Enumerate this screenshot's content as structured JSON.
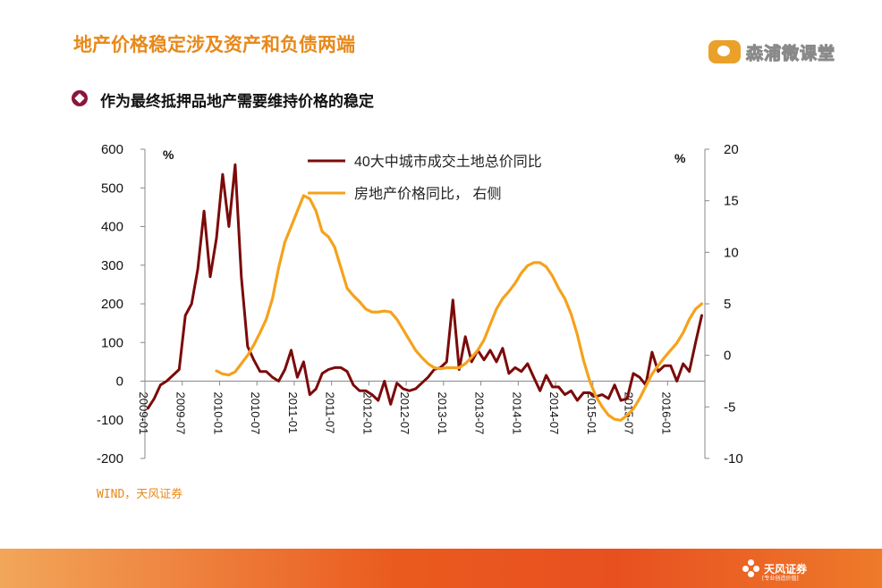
{
  "page": {
    "title": "地产价格稳定涉及资产和负债两端",
    "logo_text": "森浦微课堂",
    "bullet_text": "作为最终抵押品地产需要维持价格的稳定",
    "source": "WIND，天风证券",
    "footer_brand": "天风证券",
    "footer_tagline": "[专业创造价值]",
    "colors": {
      "title": "#e8891a",
      "bullet": "#8b1638",
      "series1": "#7b0a0a",
      "series2": "#f5a21c"
    }
  },
  "chart_data": {
    "type": "line",
    "left_unit": "%",
    "right_unit": "%",
    "y_left": {
      "min": -200,
      "max": 600,
      "ticks": [
        -200,
        -100,
        0,
        100,
        200,
        300,
        400,
        500,
        600
      ]
    },
    "y_right": {
      "min": -10,
      "max": 20,
      "ticks": [
        -10,
        -5,
        0,
        5,
        10,
        15,
        20
      ]
    },
    "x_ticks": [
      "2009-01",
      "2009-07",
      "2010-01",
      "2010-07",
      "2011-01",
      "2011-07",
      "2012-01",
      "2012-07",
      "2013-01",
      "2013-07",
      "2014-01",
      "2014-07",
      "2015-01",
      "2015-07",
      "2016-01"
    ],
    "x_start": "2009-01",
    "grid": false,
    "legend_position": "top-center",
    "series": [
      {
        "name": "40大中城市成交土地总价同比",
        "axis": "left",
        "color": "#7b0a0a",
        "values": [
          -70,
          -45,
          -10,
          0,
          15,
          30,
          170,
          200,
          290,
          440,
          270,
          370,
          535,
          400,
          560,
          270,
          90,
          55,
          25,
          25,
          10,
          0,
          30,
          80,
          10,
          50,
          -35,
          -20,
          20,
          30,
          35,
          35,
          25,
          -10,
          -25,
          -25,
          -35,
          -50,
          0,
          -60,
          -5,
          -20,
          -25,
          -20,
          -5,
          10,
          30,
          35,
          50,
          210,
          30,
          115,
          50,
          80,
          55,
          80,
          50,
          85,
          20,
          35,
          25,
          45,
          10,
          -25,
          15,
          -15,
          -15,
          -35,
          -25,
          -50,
          -30,
          -30,
          -40,
          -35,
          -45,
          -10,
          -50,
          -45,
          20,
          10,
          -10,
          75,
          25,
          40,
          40,
          0,
          45,
          25,
          100,
          170
        ]
      },
      {
        "name": "房地产价格同比， 右侧",
        "axis": "right",
        "color": "#f5a21c",
        "values": [
          -1.5,
          -1.8,
          -1.9,
          -1.6,
          -0.8,
          0,
          1,
          2.2,
          3.5,
          5.5,
          8.5,
          11,
          12.5,
          14,
          15.5,
          15.2,
          14,
          12,
          11.5,
          10.5,
          8.5,
          6.5,
          5.8,
          5.2,
          4.5,
          4.2,
          4.2,
          4.3,
          4.2,
          3.5,
          2.5,
          1.5,
          0.5,
          -0.2,
          -0.8,
          -1.2,
          -1.3,
          -1.2,
          -1.2,
          -1.2,
          -0.8,
          -0.2,
          0.5,
          1.5,
          3,
          4.5,
          5.5,
          6.2,
          7,
          8,
          8.7,
          9,
          9,
          8.6,
          7.7,
          6.5,
          5.5,
          4,
          2,
          -0.5,
          -2.5,
          -4,
          -5,
          -5.8,
          -6.2,
          -6.3,
          -5.8,
          -5.2,
          -4.2,
          -3,
          -1.8,
          -1,
          -0.2,
          0.5,
          1.2,
          2.2,
          3.5,
          4.5,
          5
        ]
      }
    ]
  }
}
